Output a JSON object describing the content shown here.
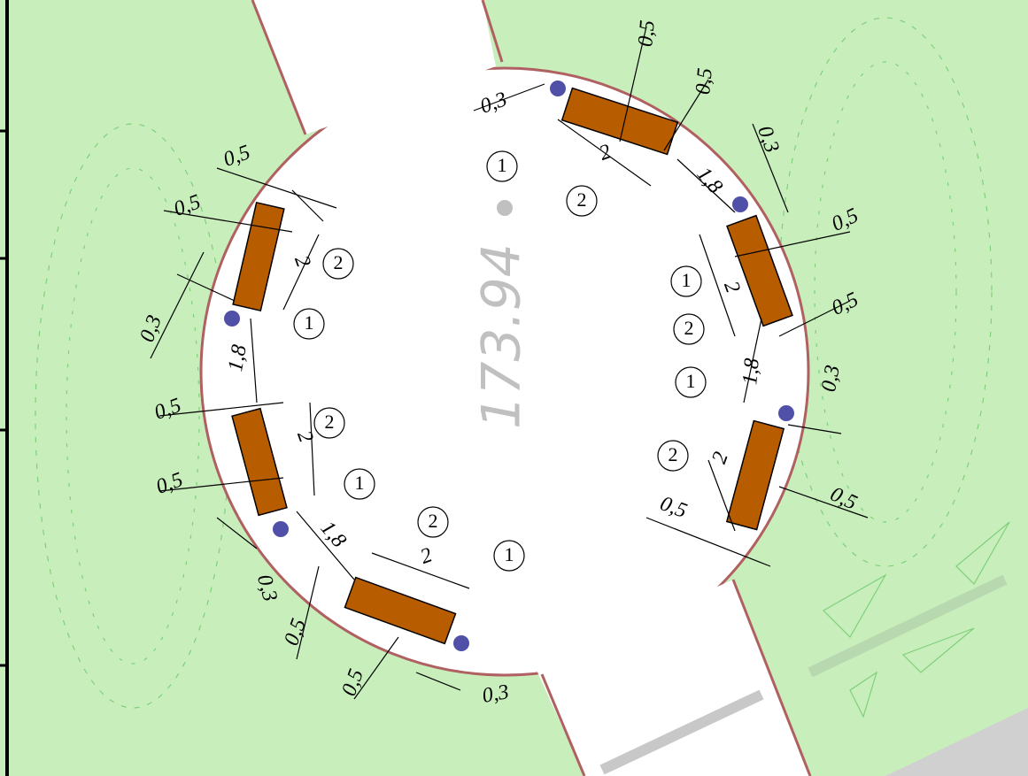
{
  "elevation": "173.94",
  "dimensions": [
    "0,5",
    "0,5",
    "2",
    "0,3",
    "1,8",
    "0,5",
    "2",
    "0,5",
    "0,3",
    "1,8",
    "2",
    "0,5",
    "0,5",
    "0,3",
    "0,3",
    "0,5",
    "2",
    "0,5",
    "1,8",
    "0,3",
    "0,5",
    "2",
    "0,5",
    "1,8",
    "0,3",
    "2",
    "0,5",
    "0,5"
  ],
  "callouts": [
    "1",
    "2",
    "2",
    "1",
    "1",
    "2",
    "2",
    "1",
    "1",
    "2",
    "2",
    "1"
  ]
}
